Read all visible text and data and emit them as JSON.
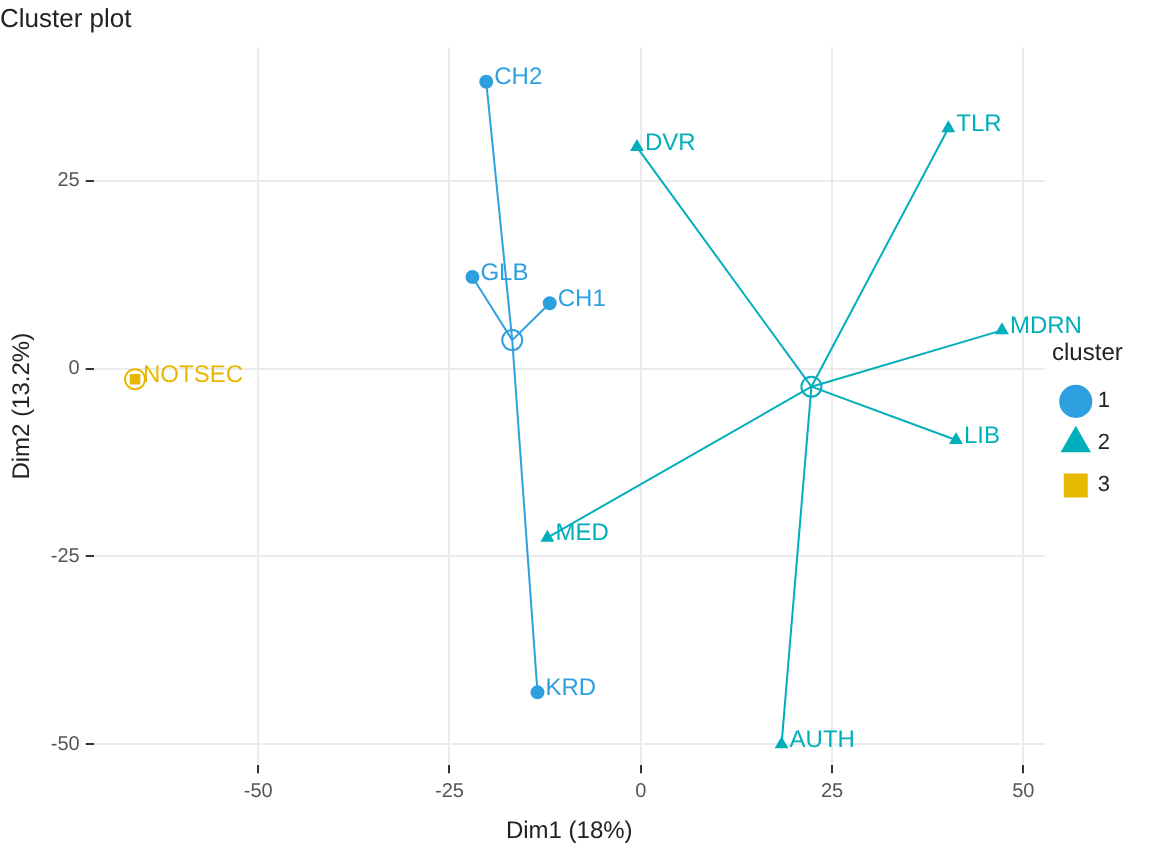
{
  "chart_data": {
    "type": "scatter",
    "title": "Cluster plot",
    "xlabel": "Dim1 (18%)",
    "ylabel": "Dim2 (13.2%)",
    "legend_title": "cluster",
    "xlim": [
      -71.5,
      52.8
    ],
    "ylim": [
      -52.8,
      42.8
    ],
    "xticks": [
      -50,
      -25,
      0,
      25,
      50
    ],
    "yticks": [
      -50,
      -25,
      0,
      25
    ],
    "grid": true,
    "legend": "right",
    "series": [
      {
        "name": "1",
        "color": "#2e9fdf",
        "marker": "circle",
        "x": [
          -20.2,
          -22.0,
          -11.9,
          -13.5
        ],
        "values": [
          38.2,
          12.2,
          8.7,
          -43.1
        ]
      },
      {
        "name": "2",
        "color": "#00afbb",
        "marker": "triangle",
        "x": [
          -0.5,
          40.2,
          47.2,
          41.2,
          18.4,
          -12.2
        ],
        "values": [
          29.5,
          32.0,
          5.1,
          -9.5,
          -50.0,
          -22.5
        ]
      },
      {
        "name": "3",
        "color": "#e7b800",
        "marker": "square",
        "x": [
          -66.1
        ],
        "values": [
          -1.4
        ]
      },
      {
        "type": "scatter",
        "marker": "circle",
        "colors": [
          "#2e9fdf",
          "#00afbb",
          "#e7b800"
        ],
        "x": [
          -16.8,
          22.3,
          -66.1
        ],
        "values": [
          3.8,
          -2.4,
          -1.4
        ]
      }
    ],
    "annotations": [
      {
        "text": "CH2",
        "x": -20.2,
        "y": 38.2
      },
      {
        "text": "GLB",
        "x": -22.0,
        "y": 12.2
      },
      {
        "text": "CH1",
        "x": -11.9,
        "y": 8.7
      },
      {
        "text": "KRD",
        "x": -13.5,
        "y": -43.1
      },
      {
        "text": "DVR",
        "x": -0.5,
        "y": 29.5
      },
      {
        "text": "TLR",
        "x": 40.2,
        "y": 32.0
      },
      {
        "text": "MDRN",
        "x": 47.2,
        "y": 5.1
      },
      {
        "text": "LIB",
        "x": 41.2,
        "y": -9.5
      },
      {
        "text": "AUTH",
        "x": 18.4,
        "y": -50.0
      },
      {
        "text": "MED",
        "x": -12.2,
        "y": -22.5
      },
      {
        "text": "NOTSEC",
        "x": -66.1,
        "y": -1.4
      }
    ]
  }
}
